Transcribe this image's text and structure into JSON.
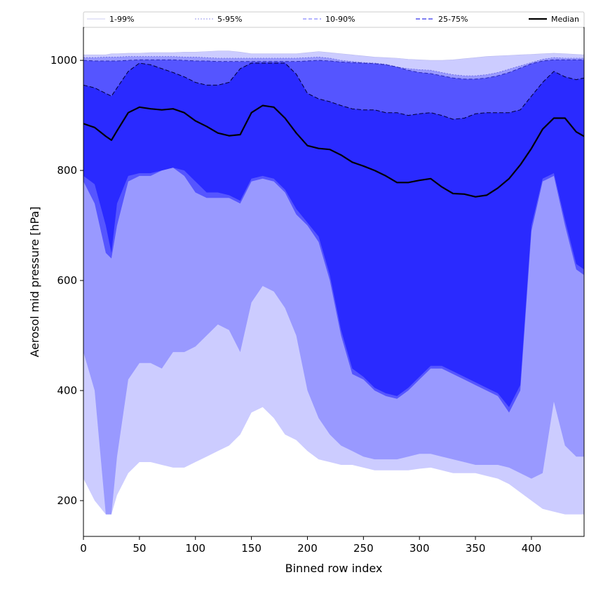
{
  "chart_data": {
    "type": "area",
    "title": "",
    "xlabel": "Binned row index",
    "ylabel": "Aerosol mid pressure [hPa]",
    "xlim": [
      0,
      447
    ],
    "ylim": [
      135,
      1060
    ],
    "xticks": [
      0,
      50,
      100,
      150,
      200,
      250,
      300,
      350,
      400
    ],
    "yticks": [
      200,
      400,
      600,
      800,
      1000
    ],
    "grid": false,
    "legend_position": "top",
    "colors": {
      "band_1_99": "#ccccff",
      "band_5_95": "#9999ff",
      "band_10_90": "#5555ff",
      "band_25_75": "#2a2aff",
      "median": "#000000"
    },
    "legend": [
      {
        "label": "1-99%",
        "style": "band_1_99"
      },
      {
        "label": "5-95%",
        "style": "band_5_95"
      },
      {
        "label": "10-90%",
        "style": "band_10_90"
      },
      {
        "label": "25-75%",
        "style": "band_25_75"
      },
      {
        "label": "Median",
        "style": "median"
      }
    ],
    "x": [
      0,
      10,
      20,
      25,
      30,
      40,
      50,
      60,
      70,
      80,
      90,
      100,
      110,
      120,
      130,
      140,
      150,
      160,
      170,
      180,
      190,
      200,
      210,
      220,
      230,
      240,
      250,
      260,
      270,
      280,
      290,
      300,
      310,
      320,
      330,
      340,
      350,
      360,
      370,
      380,
      390,
      400,
      410,
      420,
      430,
      440,
      447
    ],
    "bands": [
      {
        "name": "1-99%",
        "lower": [
          240,
          200,
          175,
          175,
          210,
          250,
          270,
          270,
          265,
          260,
          260,
          270,
          280,
          290,
          300,
          320,
          360,
          370,
          350,
          320,
          310,
          290,
          275,
          270,
          265,
          265,
          260,
          255,
          255,
          255,
          255,
          258,
          260,
          255,
          250,
          250,
          250,
          245,
          240,
          230,
          215,
          200,
          185,
          180,
          175,
          175,
          175
        ],
        "upper": [
          1010,
          1010,
          1010,
          1012,
          1012,
          1013,
          1013,
          1014,
          1014,
          1014,
          1015,
          1015,
          1016,
          1017,
          1017,
          1015,
          1012,
          1012,
          1012,
          1012,
          1012,
          1014,
          1016,
          1014,
          1012,
          1010,
          1008,
          1006,
          1005,
          1004,
          1002,
          1001,
          1000,
          1000,
          1001,
          1003,
          1005,
          1007,
          1008,
          1009,
          1010,
          1011,
          1012,
          1013,
          1012,
          1011,
          1010
        ]
      },
      {
        "name": "5-95%",
        "lower": [
          470,
          400,
          175,
          175,
          280,
          420,
          450,
          450,
          440,
          470,
          470,
          480,
          500,
          520,
          510,
          470,
          560,
          590,
          580,
          550,
          500,
          400,
          350,
          320,
          300,
          290,
          280,
          275,
          275,
          275,
          280,
          285,
          285,
          280,
          275,
          270,
          265,
          265,
          265,
          260,
          250,
          240,
          250,
          380,
          300,
          280,
          280
        ],
        "upper": [
          1005,
          1005,
          1006,
          1006,
          1006,
          1007,
          1007,
          1007,
          1007,
          1007,
          1006,
          1006,
          1005,
          1004,
          1004,
          1004,
          1004,
          1004,
          1004,
          1004,
          1004,
          1005,
          1006,
          1004,
          1000,
          998,
          996,
          995,
          993,
          988,
          985,
          983,
          982,
          978,
          974,
          972,
          972,
          974,
          978,
          984,
          990,
          996,
          1002,
          1005,
          1004,
          1004,
          1004
        ]
      },
      {
        "name": "10-90%",
        "lower": [
          780,
          740,
          650,
          640,
          700,
          780,
          790,
          790,
          800,
          805,
          790,
          760,
          750,
          750,
          750,
          740,
          780,
          785,
          780,
          760,
          720,
          700,
          670,
          600,
          500,
          430,
          420,
          400,
          390,
          385,
          400,
          420,
          440,
          440,
          430,
          420,
          410,
          400,
          390,
          360,
          400,
          690,
          780,
          790,
          700,
          620,
          610
        ],
        "upper": [
          1000,
          999,
          999,
          999,
          999,
          1000,
          1001,
          1001,
          1001,
          1001,
          1000,
          999,
          999,
          998,
          998,
          998,
          998,
          998,
          998,
          998,
          998,
          999,
          1000,
          999,
          997,
          996,
          995,
          994,
          992,
          988,
          982,
          978,
          976,
          972,
          968,
          966,
          966,
          968,
          972,
          978,
          986,
          994,
          999,
          1001,
          1001,
          1001,
          1001
        ]
      },
      {
        "name": "25-75%",
        "lower": [
          790,
          775,
          700,
          650,
          740,
          790,
          795,
          795,
          800,
          805,
          800,
          780,
          760,
          760,
          755,
          745,
          785,
          790,
          785,
          765,
          730,
          705,
          680,
          610,
          510,
          440,
          425,
          405,
          395,
          390,
          405,
          425,
          445,
          445,
          435,
          425,
          415,
          405,
          395,
          370,
          410,
          700,
          785,
          795,
          710,
          630,
          620
        ],
        "upper": [
          955,
          950,
          940,
          935,
          950,
          980,
          995,
          992,
          985,
          978,
          970,
          960,
          955,
          955,
          960,
          985,
          995,
          995,
          995,
          995,
          975,
          940,
          930,
          925,
          918,
          912,
          910,
          910,
          905,
          905,
          900,
          903,
          905,
          900,
          893,
          895,
          903,
          905,
          905,
          905,
          910,
          935,
          960,
          980,
          970,
          965,
          968
        ]
      }
    ],
    "median": [
      885,
      878,
      862,
      855,
      872,
      905,
      915,
      912,
      910,
      912,
      905,
      890,
      880,
      868,
      863,
      865,
      905,
      918,
      915,
      895,
      868,
      845,
      840,
      838,
      828,
      815,
      808,
      800,
      790,
      778,
      778,
      782,
      785,
      770,
      758,
      757,
      752,
      755,
      768,
      785,
      810,
      840,
      875,
      895,
      895,
      870,
      862
    ]
  }
}
